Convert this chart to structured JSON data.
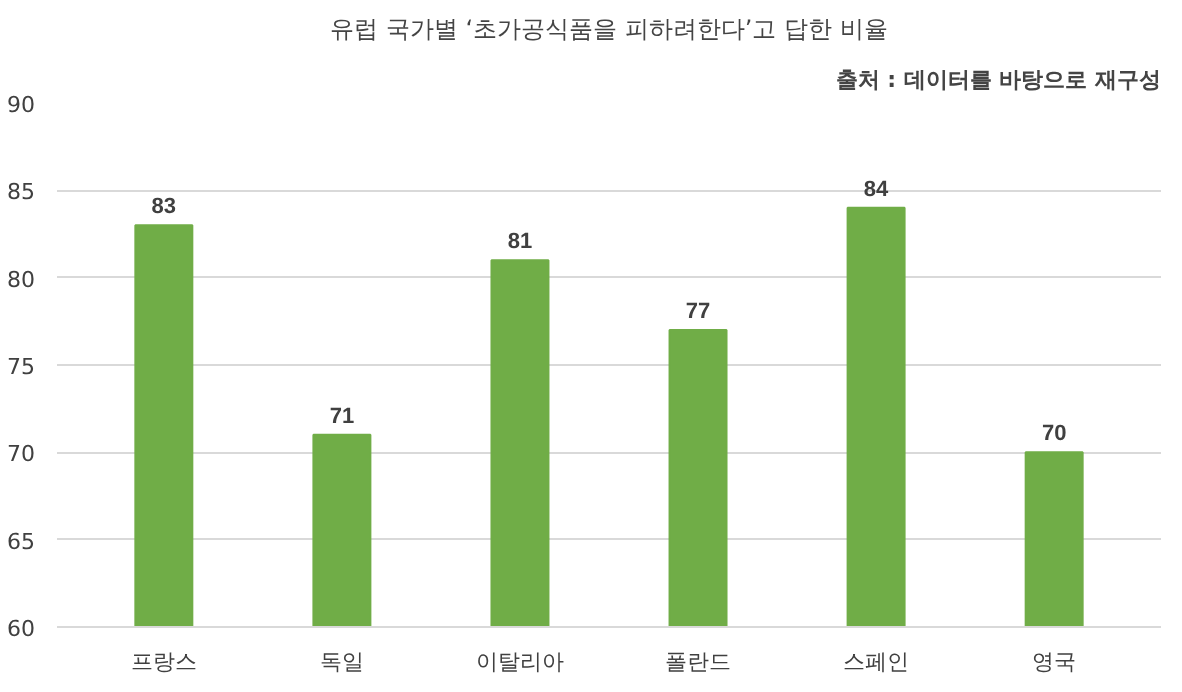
{
  "chart_data": {
    "type": "bar",
    "title": "유럽 국가별 ‘초가공식품을 피하려한다’고 답한 비율",
    "annotations": [
      "출처 : 데이터를 바탕으로 재구성"
    ],
    "categories": [
      "프랑스",
      "독일",
      "이탈리아",
      "폴란드",
      "스페인",
      "영국"
    ],
    "values": [
      83,
      71,
      81,
      77,
      84,
      70
    ],
    "color": "#70ad47",
    "ylim": [
      60,
      90
    ],
    "yticks": [
      60,
      65,
      70,
      75,
      80,
      85,
      90
    ],
    "grid": "y",
    "data_labels": true
  }
}
